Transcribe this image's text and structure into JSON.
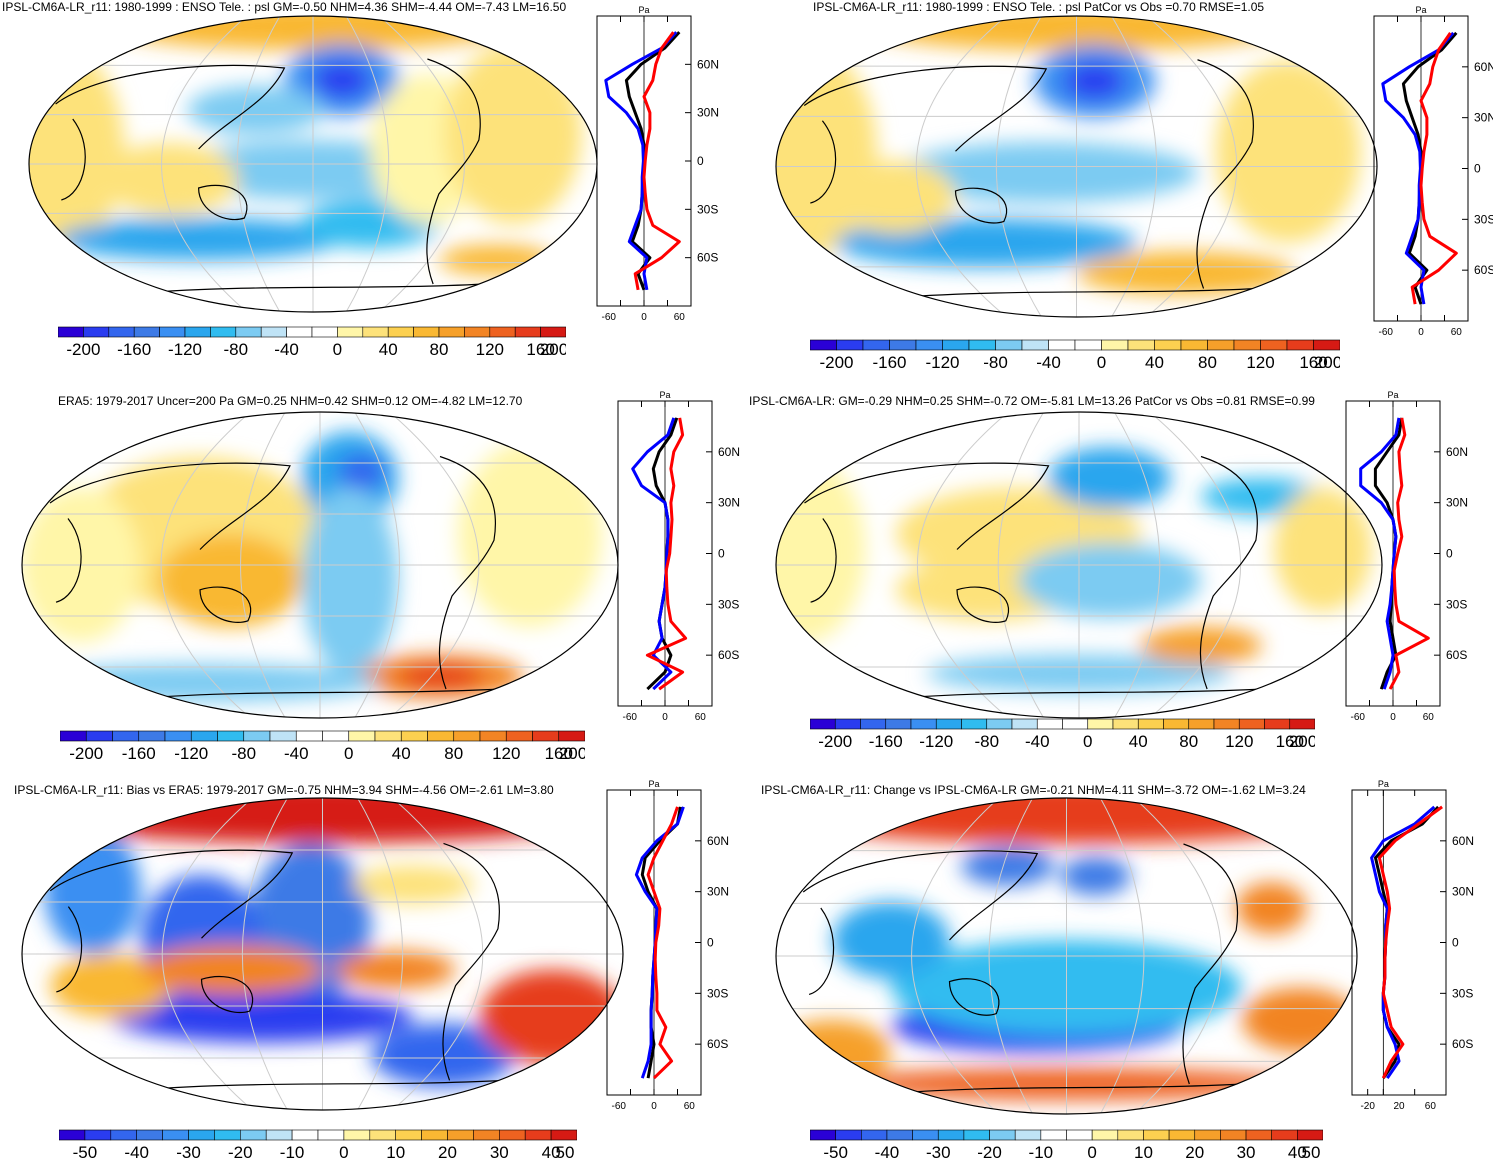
{
  "colors": {
    "palette": [
      "#2a00d6",
      "#2a3cf0",
      "#3366ee",
      "#3d7ae6",
      "#3a8ff2",
      "#2aa6ee",
      "#30bcf0",
      "#7ccbf2",
      "#bfe3f6",
      "#ffffff",
      "#ffffff",
      "#fff6a8",
      "#fde27a",
      "#fcd050",
      "#f9b833",
      "#f6a02a",
      "#f28424",
      "#ee6220",
      "#e63c1c",
      "#d61a14"
    ],
    "land": "#000000",
    "grid": "#cccccc",
    "model_line": "#000000",
    "obs_line": "#0000ff",
    "bias_line": "#ff0000"
  },
  "panels": [
    {
      "id": "p1",
      "title": "IPSL-CM6A-LR_r11: 1980-1999 : ENSO Tele. : psl GM=-0.50 NHM=4.36 SHM=-4.44 OM=-7.43 LM=16.50",
      "colorbar_labels": [
        "-200",
        "-160",
        "-120",
        "-80",
        "-40",
        "0",
        "40",
        "80",
        "120",
        "160",
        "200"
      ],
      "lat_labels": [
        "60N",
        "30N",
        "0",
        "30S",
        "60S"
      ],
      "x_ticks": [
        "-60",
        "0",
        "60"
      ],
      "unit": "Pa"
    },
    {
      "id": "p2",
      "title": "IPSL-CM6A-LR_r11: 1980-1999 : ENSO Tele. : psl PatCor vs Obs =0.70 RMSE=1.05",
      "colorbar_labels": [
        "-200",
        "-160",
        "-120",
        "-80",
        "-40",
        "0",
        "40",
        "80",
        "120",
        "160",
        "200"
      ],
      "lat_labels": [
        "60N",
        "30N",
        "0",
        "30S",
        "60S"
      ],
      "x_ticks": [
        "-60",
        "0",
        "60"
      ],
      "unit": "Pa"
    },
    {
      "id": "p3",
      "title": "ERA5: 1979-2017 Uncer=200 Pa GM=0.25 NHM=0.42 SHM=0.12 OM=-4.82 LM=12.70",
      "colorbar_labels": [
        "-200",
        "-160",
        "-120",
        "-80",
        "-40",
        "0",
        "40",
        "80",
        "120",
        "160",
        "200"
      ],
      "lat_labels": [
        "60N",
        "30N",
        "0",
        "30S",
        "60S"
      ],
      "x_ticks": [
        "-60",
        "0",
        "60"
      ],
      "unit": "Pa"
    },
    {
      "id": "p4",
      "title": "IPSL-CM6A-LR: GM=-0.29 NHM=0.25 SHM=-0.72 OM=-5.81 LM=13.26 PatCor vs Obs =0.81 RMSE=0.99",
      "colorbar_labels": [
        "-200",
        "-160",
        "-120",
        "-80",
        "-40",
        "0",
        "40",
        "80",
        "120",
        "160",
        "200"
      ],
      "lat_labels": [
        "60N",
        "30N",
        "0",
        "30S",
        "60S"
      ],
      "x_ticks": [
        "-60",
        "0",
        "60"
      ],
      "unit": "Pa"
    },
    {
      "id": "p5",
      "title": "IPSL-CM6A-LR_r11: Bias vs ERA5: 1979-2017 GM=-0.75 NHM=3.94 SHM=-4.56 OM=-2.61 LM=3.80",
      "colorbar_labels": [
        "-50",
        "-40",
        "-30",
        "-20",
        "-10",
        "0",
        "10",
        "20",
        "30",
        "40",
        "50"
      ],
      "lat_labels": [
        "60N",
        "30N",
        "0",
        "30S",
        "60S"
      ],
      "x_ticks": [
        "-60",
        "0",
        "60"
      ],
      "unit": "Pa"
    },
    {
      "id": "p6",
      "title": "IPSL-CM6A-LR_r11: Change vs IPSL-CM6A-LR GM=-0.21 NHM=4.11 SHM=-3.72 OM=-1.62 LM=3.24",
      "colorbar_labels": [
        "-50",
        "-40",
        "-30",
        "-20",
        "-10",
        "0",
        "10",
        "20",
        "30",
        "40",
        "50"
      ],
      "lat_labels": [
        "60N",
        "30N",
        "0",
        "30S",
        "60S"
      ],
      "x_ticks": [
        "-20",
        "20",
        "60"
      ],
      "unit": "Pa"
    }
  ],
  "chart_data": [
    {
      "type": "heatmap",
      "title": "IPSL-CM6A-LR_r11: 1980-1999 : ENSO Tele. : psl",
      "projection": "Robinson, Pacific-centred",
      "colorbar_range": [
        -200,
        200
      ],
      "colorbar_step": 20,
      "zonal_profile": {
        "type": "line",
        "xlabel": "Pa",
        "xlim": [
          -80,
          80
        ],
        "ylim": [
          -80,
          80
        ],
        "lat": [
          -80,
          -70,
          -60,
          -50,
          -40,
          -30,
          -20,
          -10,
          0,
          10,
          20,
          30,
          40,
          50,
          60,
          70,
          80
        ],
        "series": [
          {
            "name": "model",
            "color": "black",
            "values": [
              0,
              -10,
              10,
              -20,
              -10,
              -5,
              -3,
              -2,
              0,
              0,
              -5,
              -15,
              -25,
              -30,
              -5,
              35,
              60
            ]
          },
          {
            "name": "obs",
            "color": "blue",
            "values": [
              5,
              0,
              5,
              -25,
              -15,
              -5,
              -3,
              -3,
              -1,
              -2,
              -10,
              -30,
              -60,
              -65,
              -20,
              30,
              55
            ]
          },
          {
            "name": "bias",
            "color": "red",
            "values": [
              -10,
              -15,
              30,
              60,
              15,
              5,
              2,
              0,
              2,
              5,
              10,
              10,
              0,
              15,
              20,
              30,
              50
            ]
          }
        ]
      }
    },
    {
      "type": "heatmap",
      "title": "IPSL-CM6A-LR_r11: 1980-1999 : ENSO Tele. : psl PatCor vs Obs",
      "colorbar_range": [
        -200,
        200
      ],
      "zonal_profile": {
        "type": "line",
        "xlabel": "Pa",
        "xlim": [
          -80,
          80
        ],
        "lat": [
          -80,
          -70,
          -60,
          -50,
          -40,
          -30,
          -20,
          -10,
          0,
          10,
          20,
          30,
          40,
          50,
          60,
          70,
          80
        ],
        "series": [
          {
            "name": "model",
            "color": "black",
            "values": [
              0,
              -10,
              10,
              -20,
              -10,
              -5,
              -3,
              -2,
              0,
              0,
              -5,
              -15,
              -25,
              -30,
              -5,
              35,
              60
            ]
          },
          {
            "name": "obs",
            "color": "blue",
            "values": [
              5,
              0,
              5,
              -25,
              -15,
              -5,
              -3,
              -3,
              -1,
              -2,
              -10,
              -30,
              -60,
              -65,
              -20,
              30,
              55
            ]
          },
          {
            "name": "bias",
            "color": "red",
            "values": [
              -10,
              -15,
              30,
              60,
              15,
              5,
              2,
              0,
              2,
              5,
              10,
              10,
              0,
              15,
              20,
              30,
              50
            ]
          }
        ]
      }
    },
    {
      "type": "heatmap",
      "title": "ERA5: 1979-2017 Uncer=200 Pa",
      "colorbar_range": [
        -200,
        200
      ],
      "zonal_profile": {
        "type": "line",
        "xlabel": "Pa",
        "xlim": [
          -80,
          80
        ],
        "lat": [
          -80,
          -70,
          -60,
          -50,
          -40,
          -30,
          -20,
          -10,
          0,
          10,
          20,
          30,
          40,
          50,
          60,
          70,
          80
        ],
        "series": [
          {
            "name": "model",
            "color": "black",
            "values": [
              -30,
              0,
              10,
              -5,
              -10,
              -5,
              0,
              2,
              3,
              5,
              5,
              0,
              -15,
              -20,
              -10,
              10,
              20
            ]
          },
          {
            "name": "obs",
            "color": "blue",
            "values": [
              -20,
              10,
              -20,
              -5,
              -10,
              -5,
              0,
              2,
              3,
              5,
              5,
              0,
              -40,
              -55,
              -30,
              5,
              15
            ]
          },
          {
            "name": "bias",
            "color": "red",
            "values": [
              -10,
              30,
              -30,
              35,
              10,
              5,
              3,
              2,
              8,
              10,
              12,
              10,
              15,
              10,
              15,
              30,
              25
            ]
          }
        ]
      }
    },
    {
      "type": "heatmap",
      "title": "IPSL-CM6A-LR: PatCor vs Obs",
      "colorbar_range": [
        -200,
        200
      ],
      "zonal_profile": {
        "type": "line",
        "xlabel": "Pa",
        "xlim": [
          -80,
          80
        ],
        "lat": [
          -80,
          -70,
          -60,
          -50,
          -40,
          -30,
          -20,
          -10,
          0,
          10,
          20,
          30,
          40,
          50,
          60,
          70,
          80
        ],
        "series": [
          {
            "name": "model",
            "color": "black",
            "values": [
              -20,
              -10,
              5,
              0,
              -5,
              -3,
              -2,
              0,
              2,
              5,
              0,
              -10,
              -30,
              -30,
              -10,
              10,
              15
            ]
          },
          {
            "name": "obs",
            "color": "blue",
            "values": [
              -15,
              -5,
              0,
              -5,
              -10,
              -5,
              -2,
              0,
              2,
              5,
              0,
              -20,
              -55,
              -55,
              -20,
              5,
              10
            ]
          },
          {
            "name": "bias",
            "color": "red",
            "values": [
              -5,
              10,
              5,
              60,
              10,
              5,
              3,
              2,
              8,
              15,
              10,
              8,
              15,
              12,
              10,
              20,
              15
            ]
          }
        ]
      }
    },
    {
      "type": "heatmap",
      "title": "IPSL-CM6A-LR_r11: Bias vs ERA5: 1979-2017",
      "colorbar_range": [
        -50,
        50
      ],
      "colorbar_step": 5,
      "zonal_profile": {
        "type": "line",
        "xlabel": "Pa",
        "xlim": [
          -80,
          80
        ],
        "lat": [
          -80,
          -70,
          -60,
          -50,
          -40,
          -30,
          -20,
          -10,
          0,
          10,
          20,
          30,
          40,
          50,
          60,
          70,
          80
        ],
        "series": [
          {
            "name": "model",
            "color": "black",
            "values": [
              -10,
              -5,
              0,
              -5,
              -5,
              -3,
              -2,
              0,
              2,
              3,
              5,
              -10,
              -20,
              -15,
              10,
              40,
              45
            ]
          },
          {
            "name": "obs",
            "color": "blue",
            "values": [
              -20,
              -10,
              -5,
              -5,
              -5,
              -3,
              -2,
              0,
              2,
              3,
              5,
              -15,
              -30,
              -20,
              5,
              40,
              50
            ]
          },
          {
            "name": "bias",
            "color": "red",
            "values": [
              0,
              30,
              10,
              20,
              5,
              5,
              3,
              2,
              3,
              8,
              10,
              0,
              -10,
              0,
              15,
              30,
              40
            ]
          }
        ]
      }
    },
    {
      "type": "heatmap",
      "title": "IPSL-CM6A-LR_r11: Change vs IPSL-CM6A-LR",
      "colorbar_range": [
        -50,
        50
      ],
      "colorbar_step": 5,
      "zonal_profile": {
        "type": "line",
        "xlabel": "Pa",
        "xlim": [
          -40,
          80
        ],
        "lat": [
          -80,
          -70,
          -60,
          -50,
          -40,
          -30,
          -20,
          -10,
          0,
          10,
          20,
          30,
          40,
          50,
          60,
          70,
          80
        ],
        "series": [
          {
            "name": "model",
            "color": "black",
            "values": [
              0,
              15,
              20,
              5,
              0,
              0,
              2,
              2,
              3,
              3,
              5,
              0,
              -5,
              -10,
              10,
              50,
              70
            ]
          },
          {
            "name": "obs",
            "color": "blue",
            "values": [
              5,
              20,
              15,
              5,
              0,
              0,
              2,
              2,
              3,
              3,
              5,
              -5,
              -10,
              -15,
              0,
              40,
              65
            ]
          },
          {
            "name": "bias",
            "color": "red",
            "values": [
              0,
              10,
              25,
              10,
              5,
              0,
              2,
              2,
              3,
              5,
              8,
              5,
              0,
              -5,
              15,
              45,
              75
            ]
          }
        ]
      }
    }
  ]
}
